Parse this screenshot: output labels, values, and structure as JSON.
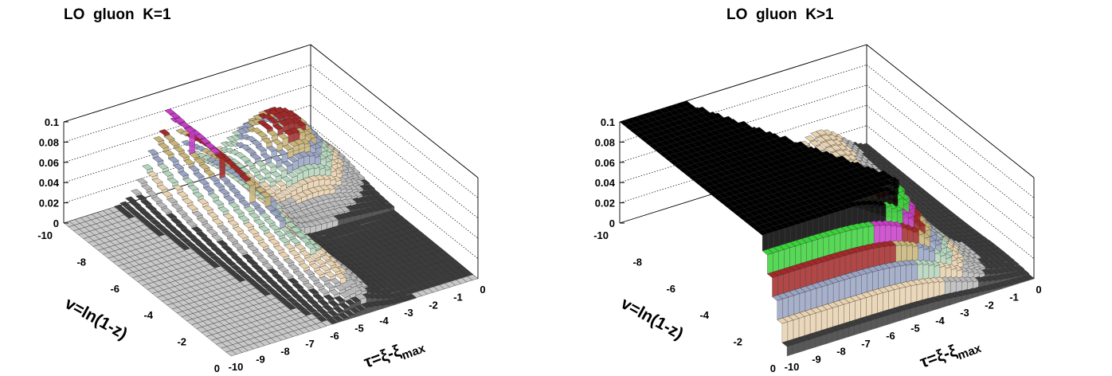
{
  "chart_data": [
    {
      "type": "surface",
      "title": "LO  gluon  K=1",
      "xlabel": "τ=ξ-ξ",
      "xlabel_sub": "max",
      "ylabel": "v=ln(1-z)",
      "z_ticks": [
        "0",
        "0.02",
        "0.04",
        "0.06",
        "0.08",
        "0.1"
      ],
      "x_ticks": [
        "-10",
        "-9",
        "-8",
        "-7",
        "-6",
        "-5",
        "-4",
        "-3",
        "-2",
        "-1",
        "0"
      ],
      "y_ticks": [
        "-10",
        "-8",
        "-6",
        "-4",
        "-2",
        "0"
      ],
      "xlim": [
        -10,
        0
      ],
      "ylim": [
        -10,
        0
      ],
      "zlim": [
        0,
        0.1
      ],
      "surface": "ridge along x≈-6 rising toward v=0, peak ≈0.06 near τ=-2, v=-8; flat zero elsewhere"
    },
    {
      "type": "surface",
      "title": "LO  gluon  K>1",
      "xlabel": "τ=ξ-ξ",
      "xlabel_sub": "max",
      "ylabel": "v=ln(1-z)",
      "z_ticks": [
        "0",
        "0.02",
        "0.04",
        "0.06",
        "0.08",
        "0.1"
      ],
      "x_ticks": [
        "-10",
        "-9",
        "-8",
        "-7",
        "-6",
        "-5",
        "-4",
        "-3",
        "-2",
        "-1",
        "0"
      ],
      "y_ticks": [
        "-10",
        "-8",
        "-6",
        "-4",
        "-2",
        "0"
      ],
      "xlim": [
        -10,
        0
      ],
      "ylim": [
        -10,
        0
      ],
      "zlim": [
        0,
        0.1
      ],
      "surface": "plateau clipped at z=0.1 for τ<-6, v>-5 region; smooth fall-off toward τ=0"
    }
  ],
  "palette": {
    "axis": "#000000",
    "grid": "#000000",
    "lowest": "#c8c8c8",
    "bands": [
      "#3c3c3c",
      "#b9b9b9",
      "#e8d2b0",
      "#b4d4bc",
      "#9aa4c2",
      "#c8b478",
      "#a42828",
      "#c83cc8",
      "#3ad23a",
      "#000000"
    ]
  }
}
